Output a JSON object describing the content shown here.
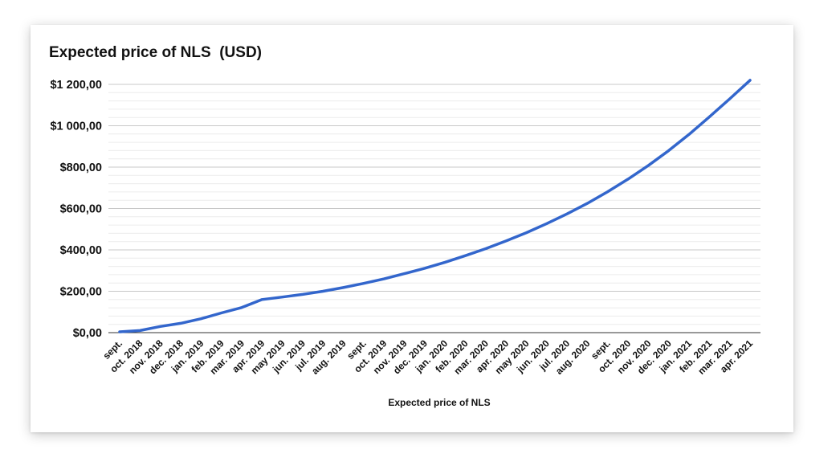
{
  "chart_data": {
    "type": "line",
    "title": "Expected price of NLS  (USD)",
    "xlabel": "Expected price of NLS",
    "ylabel": "",
    "ylim": [
      0,
      1200
    ],
    "ytick_labels": [
      "$0,00",
      "$200,00",
      "$400,00",
      "$600,00",
      "$800,00",
      "$1 000,00",
      "$1 200,00"
    ],
    "ytick_values": [
      0,
      200,
      400,
      600,
      800,
      1000,
      1200
    ],
    "grid": true,
    "legend": "none",
    "line_color": "#3366cc",
    "categories": [
      "sept.",
      "oct. 2018",
      "nov. 2018",
      "dec. 2018",
      "jan. 2019",
      "feb. 2019",
      "mar. 2019",
      "apr. 2019",
      "may 2019",
      "jun. 2019",
      "jul. 2019",
      "aug. 2019",
      "sept.",
      "oct. 2019",
      "nov. 2019",
      "dec. 2019",
      "jan. 2020",
      "feb. 2020",
      "mar. 2020",
      "apr. 2020",
      "may 2020",
      "jun. 2020",
      "jul. 2020",
      "aug. 2020",
      "sept.",
      "oct. 2020",
      "nov. 2020",
      "dec. 2020",
      "jan. 2021",
      "feb. 2021",
      "mar. 2021",
      "apr. 2021"
    ],
    "series": [
      {
        "values": [
          4,
          10,
          30,
          45,
          67,
          95,
          121,
          160,
          172,
          185,
          200,
          218,
          238,
          260,
          285,
          311,
          340,
          372,
          406,
          443,
          483,
          527,
          574,
          625,
          681,
          742,
          808,
          880,
          958,
          1043,
          1130,
          1220
        ]
      }
    ]
  }
}
